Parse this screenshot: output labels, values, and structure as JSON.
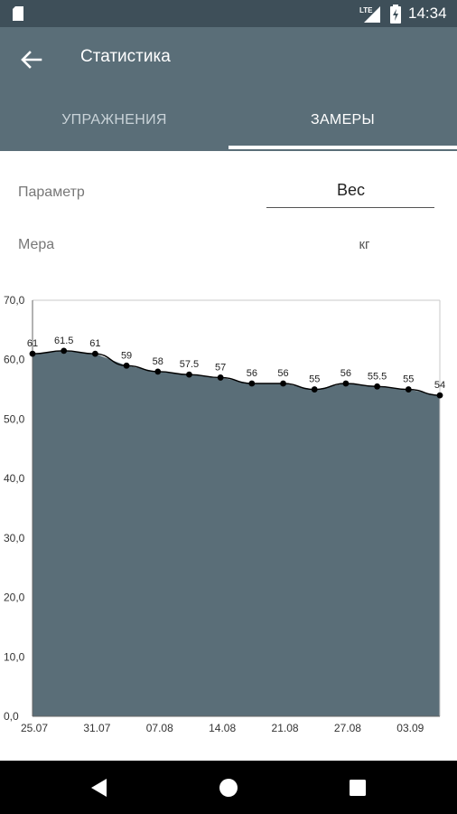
{
  "status_bar": {
    "network": "LTE",
    "time": "14:34",
    "icons": [
      "sd-card-icon",
      "signal-icon",
      "battery-charging-icon"
    ]
  },
  "app_bar": {
    "title": "Статистика",
    "back_icon": "arrow-back-icon"
  },
  "tabs": [
    {
      "label": "УПРАЖНЕНИЯ",
      "selected": false
    },
    {
      "label": "ЗАМЕРЫ",
      "selected": true
    }
  ],
  "form": {
    "parameter_label": "Параметр",
    "parameter_value": "Вес",
    "measure_label": "Мера",
    "measure_value": "кг"
  },
  "colors": {
    "status_bar": "#3e4f59",
    "app_bar": "#5a6e78",
    "chart_fill": "#5a6e78",
    "line": "#000000"
  },
  "chart_data": {
    "type": "area",
    "x": [
      "25.07",
      "",
      "31.07",
      "",
      "07.08",
      "",
      "14.08",
      "",
      "21.08",
      "",
      "27.08",
      "",
      "03.09",
      ""
    ],
    "x_ticks": [
      "25.07",
      "31.07",
      "07.08",
      "14.08",
      "21.08",
      "27.08",
      "03.09"
    ],
    "values": [
      61,
      61.5,
      61,
      59,
      58,
      57.5,
      57,
      56,
      56,
      55,
      56,
      55.5,
      55,
      54
    ],
    "data_labels": [
      "61",
      "61.5",
      "61",
      "59",
      "58",
      "57.5",
      "57",
      "56",
      "56",
      "55",
      "56",
      "55.5",
      "55",
      "54"
    ],
    "y_ticks": [
      "0,0",
      "10,0",
      "20,0",
      "30,0",
      "40,0",
      "50,0",
      "60,0",
      "70,0"
    ],
    "ylim": [
      0,
      70
    ],
    "grid": false
  },
  "nav_bar": {
    "icons": [
      "back-triangle-icon",
      "home-circle-icon",
      "recents-square-icon"
    ]
  }
}
